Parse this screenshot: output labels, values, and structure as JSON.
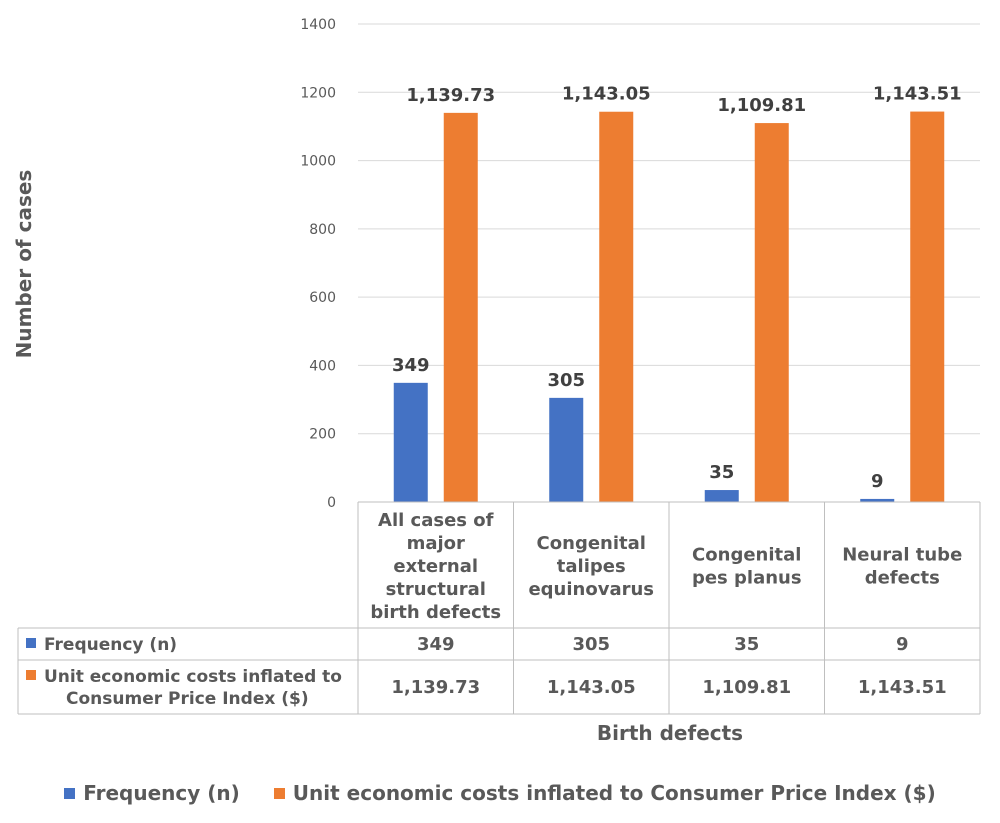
{
  "chart_data": {
    "type": "bar",
    "xlabel": "Birth defects",
    "ylabel": "Number of cases",
    "ylim": [
      0,
      1400
    ],
    "yticks": [
      0,
      200,
      400,
      600,
      800,
      1000,
      1200,
      1400
    ],
    "grid": true,
    "legend_position": "bottom",
    "categories": [
      [
        "All cases of",
        "major",
        "external",
        "structural",
        "birth defects"
      ],
      [
        "Congenital",
        "talipes",
        "equinovarus"
      ],
      [
        "Congenital",
        "pes planus"
      ],
      [
        "Neural tube",
        "defects"
      ]
    ],
    "series": [
      {
        "name": "Frequency (n)",
        "table_name": [
          "Frequency (n)"
        ],
        "color": "#4472C4",
        "values": [
          349,
          305,
          35,
          9
        ],
        "labels": [
          "349",
          "305",
          "35",
          "9"
        ]
      },
      {
        "name": "Unit economic costs inflated to Consumer Price Index ($)",
        "table_name": [
          "Unit economic costs inflated to",
          "Consumer Price Index ($)"
        ],
        "color": "#ED7D31",
        "values": [
          1139.73,
          1143.05,
          1109.81,
          1143.51
        ],
        "labels": [
          "1,139.73",
          "1,143.05",
          "1,109.81",
          "1,143.51"
        ]
      }
    ]
  }
}
